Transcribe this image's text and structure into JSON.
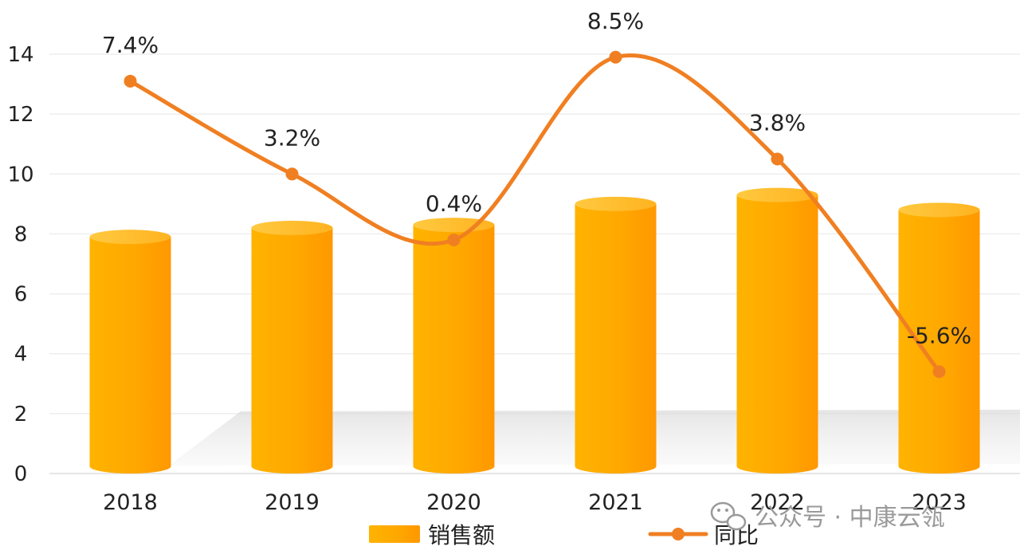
{
  "chart_data": {
    "type": "bar",
    "categories": [
      "2018",
      "2019",
      "2020",
      "2021",
      "2022",
      "2023"
    ],
    "ylim": [
      0,
      14
    ],
    "yticks": [
      0,
      2,
      4,
      6,
      8,
      10,
      12,
      14
    ],
    "grid": true,
    "series": [
      {
        "name": "销售额",
        "kind": "bar",
        "color": "#FFAA00",
        "values": [
          7.9,
          8.2,
          8.3,
          9.0,
          9.3,
          8.8
        ]
      },
      {
        "name": "同比",
        "kind": "line",
        "color": "#F07F22",
        "values": [
          13.1,
          10.0,
          7.8,
          13.9,
          10.5,
          3.4
        ],
        "labels": [
          "7.4%",
          "3.2%",
          "0.4%",
          "8.5%",
          "3.8%",
          "-5.6%"
        ]
      }
    ],
    "legend_position": "bottom"
  },
  "watermark": {
    "text": "公众号 · 中康云瓴",
    "icon": "wechat-icon"
  }
}
